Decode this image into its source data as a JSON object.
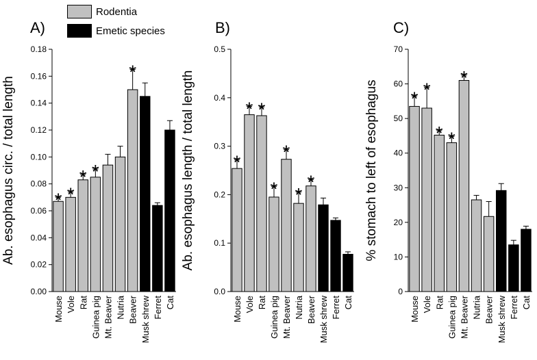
{
  "legend": {
    "rodentia": {
      "label": "Rodentia",
      "color": "#c0c0c0"
    },
    "emetic": {
      "label": "Emetic species",
      "color": "#000000"
    }
  },
  "chart_data": [
    {
      "type": "bar",
      "panel": "A)",
      "ylabel": "Ab. esophagus circ. / total length",
      "ylim": [
        0,
        0.18
      ],
      "yticks": [
        "0.00",
        "0.02",
        "0.04",
        "0.06",
        "0.08",
        "0.10",
        "0.12",
        "0.14",
        "0.16",
        "0.18"
      ],
      "categories": [
        "Mouse",
        "Vole",
        "Rat",
        "Guinea pig",
        "Mt. Beaver",
        "Nutria",
        "Beaver",
        "Musk shrew",
        "Ferret",
        "Cat"
      ],
      "group": [
        "rodentia",
        "rodentia",
        "rodentia",
        "rodentia",
        "rodentia",
        "rodentia",
        "rodentia",
        "emetic",
        "emetic",
        "emetic"
      ],
      "values": [
        0.067,
        0.07,
        0.083,
        0.085,
        0.094,
        0.1,
        0.15,
        0.145,
        0.064,
        0.12
      ],
      "errors": [
        0.003,
        0.004,
        0.004,
        0.006,
        0.008,
        0.008,
        0.015,
        0.01,
        0.002,
        0.007
      ],
      "significance": [
        "*",
        "*",
        "*",
        "*",
        "",
        "",
        "*",
        "",
        "",
        ""
      ]
    },
    {
      "type": "bar",
      "panel": "B)",
      "ylabel": "Ab. esophagus length / total length",
      "ylim": [
        0,
        0.5
      ],
      "yticks": [
        "0.0",
        "0.1",
        "0.2",
        "0.3",
        "0.4",
        "0.5"
      ],
      "categories": [
        "Mouse",
        "Vole",
        "Rat",
        "Guinea pig",
        "Mt. Beaver",
        "Nutria",
        "Beaver",
        "Musk shrew",
        "Ferret",
        "Cat"
      ],
      "group": [
        "rodentia",
        "rodentia",
        "rodentia",
        "rodentia",
        "rodentia",
        "rodentia",
        "rodentia",
        "emetic",
        "emetic",
        "emetic"
      ],
      "values": [
        0.254,
        0.365,
        0.363,
        0.195,
        0.273,
        0.182,
        0.218,
        0.179,
        0.147,
        0.077
      ],
      "errors": [
        0.018,
        0.017,
        0.018,
        0.022,
        0.02,
        0.023,
        0.013,
        0.014,
        0.005,
        0.005
      ],
      "significance": [
        "*",
        "*",
        "*",
        "*",
        "*",
        "*",
        "*",
        "",
        "",
        ""
      ]
    },
    {
      "type": "bar",
      "panel": "C)",
      "ylabel": "% stomach to left of esophagus",
      "ylim": [
        0,
        70
      ],
      "yticks": [
        "0",
        "10",
        "20",
        "30",
        "40",
        "50",
        "60",
        "70"
      ],
      "categories": [
        "Mouse",
        "Vole",
        "Rat",
        "Guinea pig",
        "Mt. Beaver",
        "Nutria",
        "Beaver",
        "Musk shrew",
        "Ferret",
        "Cat"
      ],
      "group": [
        "rodentia",
        "rodentia",
        "rodentia",
        "rodentia",
        "rodentia",
        "rodentia",
        "rodentia",
        "emetic",
        "emetic",
        "emetic"
      ],
      "values": [
        53.5,
        53.0,
        45.2,
        43.0,
        61.0,
        26.5,
        21.7,
        29.2,
        13.5,
        18.0
      ],
      "errors": [
        3.0,
        6.0,
        1.3,
        1.8,
        1.5,
        1.3,
        4.3,
        2.0,
        1.3,
        0.9
      ],
      "significance": [
        "*",
        "*",
        "*",
        "*",
        "*",
        "",
        "",
        "",
        "",
        ""
      ]
    }
  ]
}
